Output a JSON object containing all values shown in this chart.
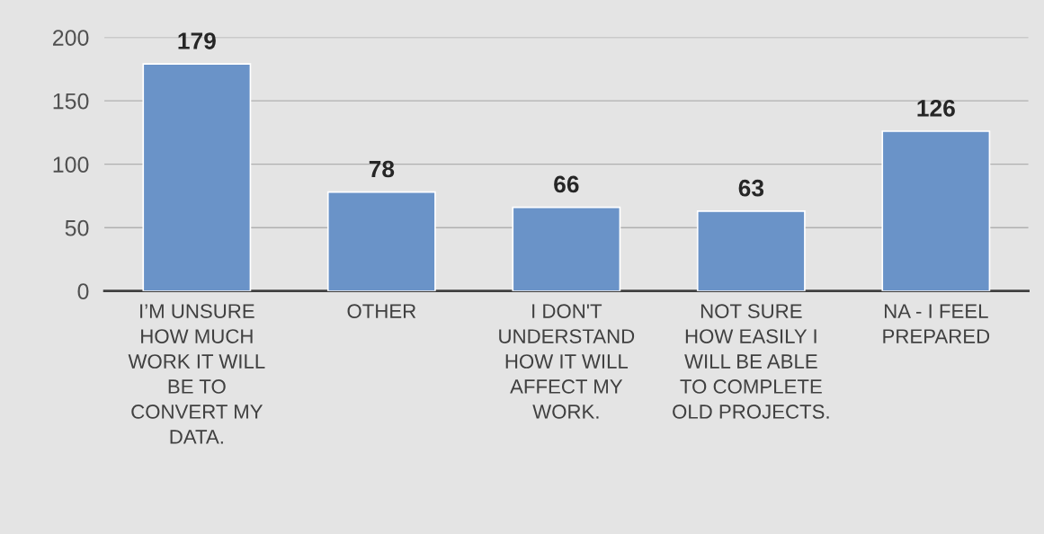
{
  "chart_data": {
    "type": "bar",
    "categories": [
      "I’M UNSURE\nHOW MUCH\nWORK IT WILL\nBE TO\nCONVERT MY\nDATA.",
      "OTHER",
      "I DON'T\nUNDERSTAND\nHOW IT WILL\nAFFECT MY\nWORK.",
      "NOT SURE\nHOW EASILY I\nWILL BE ABLE\nTO COMPLETE\nOLD PROJECTS.",
      "NA - I FEEL\nPREPARED"
    ],
    "values": [
      179,
      78,
      66,
      63,
      126
    ],
    "color": "#6a93c8",
    "ylim": [
      0,
      200
    ],
    "yticks": [
      0,
      50,
      100,
      150,
      200
    ],
    "grid": "y",
    "data_labels": true
  }
}
